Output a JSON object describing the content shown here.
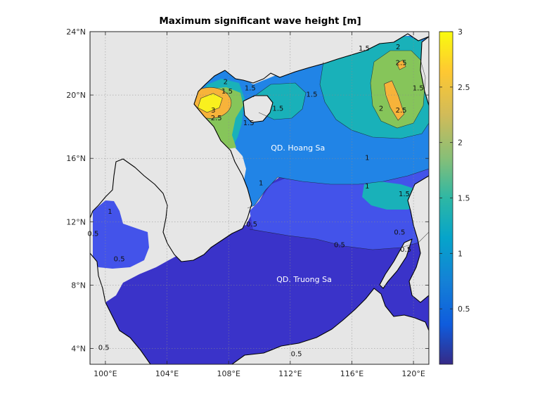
{
  "chart_data": {
    "type": "heatmap",
    "title": "Maximum significant wave height [m]",
    "xlabel": "",
    "ylabel": "",
    "x_range_deg_e": [
      99,
      121
    ],
    "y_range_deg_n": [
      3,
      24
    ],
    "x_ticks": [
      100,
      104,
      108,
      112,
      116,
      120
    ],
    "x_tick_labels": [
      "100°E",
      "104°E",
      "108°E",
      "112°E",
      "116°E",
      "120°E"
    ],
    "y_ticks": [
      4,
      8,
      12,
      16,
      20,
      24
    ],
    "y_tick_labels": [
      "4°N",
      "8°N",
      "12°N",
      "16°N",
      "20°N",
      "24°N"
    ],
    "grid": true,
    "colormap": "parula",
    "colorbar": {
      "location": "right",
      "range": [
        0,
        3
      ],
      "ticks": [
        0.5,
        1,
        1.5,
        2,
        2.5,
        3
      ],
      "tick_labels": [
        "0.5",
        "1",
        "1.5",
        "2",
        "2.5",
        "3"
      ]
    },
    "contour_levels": [
      0.5,
      1,
      1.5,
      2,
      2.5,
      3
    ],
    "contour_labels": [
      {
        "text": "3",
        "lon": 107.0,
        "lat": 18.9
      },
      {
        "text": "2.5",
        "lon": 107.2,
        "lat": 18.4
      },
      {
        "text": "2",
        "lon": 107.8,
        "lat": 20.7
      },
      {
        "text": "1.5",
        "lon": 107.9,
        "lat": 20.1
      },
      {
        "text": "1.5",
        "lon": 109.4,
        "lat": 20.3
      },
      {
        "text": "1.5",
        "lon": 109.3,
        "lat": 18.1
      },
      {
        "text": "1.5",
        "lon": 111.2,
        "lat": 19.0
      },
      {
        "text": "1.5",
        "lon": 113.4,
        "lat": 19.9
      },
      {
        "text": "1.5",
        "lon": 116.8,
        "lat": 22.8
      },
      {
        "text": "2",
        "lon": 119.0,
        "lat": 22.9
      },
      {
        "text": "2.5",
        "lon": 119.2,
        "lat": 21.9
      },
      {
        "text": "2",
        "lon": 117.9,
        "lat": 19.0
      },
      {
        "text": "2.5",
        "lon": 119.2,
        "lat": 18.9
      },
      {
        "text": "1.5",
        "lon": 120.3,
        "lat": 20.3
      },
      {
        "text": "1",
        "lon": 117.0,
        "lat": 15.9
      },
      {
        "text": "1",
        "lon": 110.1,
        "lat": 14.3
      },
      {
        "text": "1",
        "lon": 117.0,
        "lat": 14.1
      },
      {
        "text": "1.5",
        "lon": 119.4,
        "lat": 13.6
      },
      {
        "text": "1",
        "lon": 100.3,
        "lat": 12.5
      },
      {
        "text": "0.5",
        "lon": 109.5,
        "lat": 11.7
      },
      {
        "text": "0.5",
        "lon": 99.2,
        "lat": 11.1
      },
      {
        "text": "0.5",
        "lon": 100.9,
        "lat": 9.5
      },
      {
        "text": "0.5",
        "lon": 115.2,
        "lat": 10.4
      },
      {
        "text": "0.5",
        "lon": 119.1,
        "lat": 11.2
      },
      {
        "text": "0.5",
        "lon": 119.5,
        "lat": 10.1
      },
      {
        "text": "0.5",
        "lon": 99.9,
        "lat": 3.9
      },
      {
        "text": "0.5",
        "lon": 112.4,
        "lat": 3.5
      }
    ],
    "annotations": [
      {
        "text": "QD. Hoang Sa",
        "lon": 112.5,
        "lat": 16.5
      },
      {
        "text": "QD. Truong Sa",
        "lon": 112.9,
        "lat": 8.2
      }
    ],
    "regions": [
      {
        "level": 3.0,
        "description": "peak over Gulf of Tonkin",
        "points": [
          [
            106.0,
            19.2
          ],
          [
            106.2,
            19.8
          ],
          [
            107.0,
            20.1
          ],
          [
            107.6,
            19.8
          ],
          [
            107.4,
            19.2
          ],
          [
            106.6,
            18.9
          ]
        ]
      },
      {
        "level": 2.5,
        "description": "NE South China Sea patch",
        "points": [
          [
            118.9,
            22.0
          ],
          [
            119.3,
            22.2
          ],
          [
            119.5,
            21.8
          ],
          [
            119.1,
            21.6
          ]
        ]
      },
      {
        "level": 2.5,
        "description": "NE South China Sea patch",
        "points": [
          [
            118.1,
            20.7
          ],
          [
            118.6,
            20.9
          ],
          [
            119.0,
            20.0
          ],
          [
            119.4,
            18.8
          ],
          [
            119.0,
            18.4
          ],
          [
            118.5,
            19.2
          ],
          [
            118.2,
            20.0
          ]
        ]
      }
    ],
    "colors": {
      "land": "#e6e6e6",
      "coast": "#000000"
    }
  }
}
